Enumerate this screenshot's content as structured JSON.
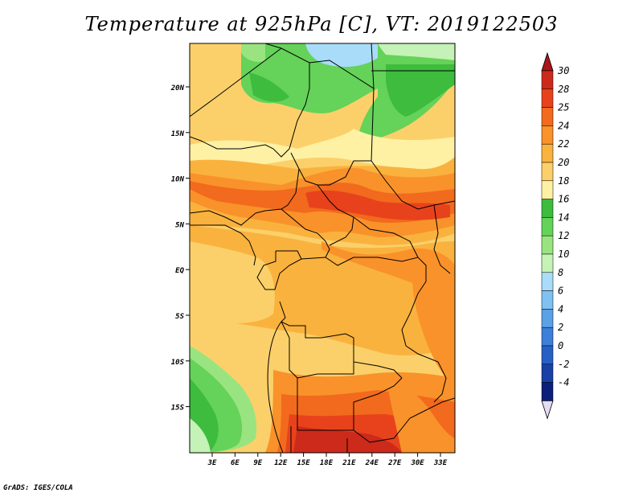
{
  "title": "Temperature at 925hPa [C], VT: 2019122503",
  "footer": "GrADS: IGES/COLA",
  "map": {
    "lat_labels": [
      "20N",
      "15N",
      "10N",
      "5N",
      "EQ",
      "5S",
      "10S",
      "15S"
    ],
    "lon_labels": [
      "3E",
      "6E",
      "9E",
      "12E",
      "15E",
      "18E",
      "21E",
      "24E",
      "27E",
      "30E",
      "33E"
    ],
    "lat_range": [
      -20,
      24.5
    ],
    "lon_range": [
      0,
      35
    ]
  },
  "colorbar": {
    "levels": [
      "30",
      "28",
      "25",
      "24",
      "22",
      "20",
      "18",
      "16",
      "14",
      "12",
      "10",
      "8",
      "6",
      "4",
      "2",
      "0",
      "-2",
      "-4"
    ],
    "colors": [
      "#cc2a1a",
      "#e8421c",
      "#f26a1d",
      "#f9922a",
      "#fab23e",
      "#fbd06a",
      "#fef1a4",
      "#3dbc3e",
      "#65d259",
      "#99e480",
      "#c5f2b6",
      "#a8dcf9",
      "#7fc1f2",
      "#5aa1e6",
      "#3d7fd9",
      "#2660c5",
      "#1840a6",
      "#0c1f7a"
    ],
    "top_color": "#a8151a",
    "bottom_color": "#e2ddf2"
  }
}
